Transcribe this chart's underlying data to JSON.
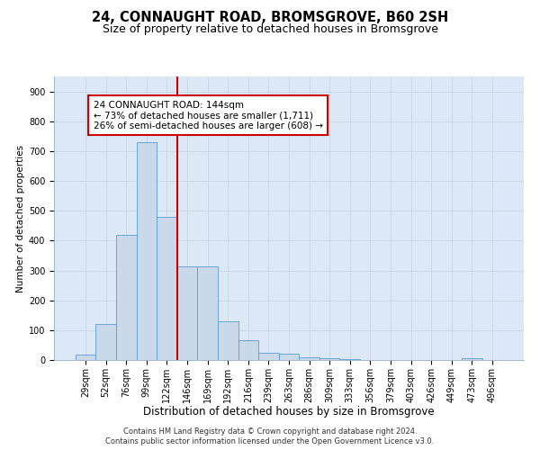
{
  "title1": "24, CONNAUGHT ROAD, BROMSGROVE, B60 2SH",
  "title2": "Size of property relative to detached houses in Bromsgrove",
  "xlabel": "Distribution of detached houses by size in Bromsgrove",
  "ylabel": "Number of detached properties",
  "bar_values": [
    18,
    120,
    418,
    730,
    480,
    315,
    315,
    130,
    65,
    25,
    20,
    10,
    5,
    2,
    0,
    0,
    0,
    0,
    0,
    5,
    0
  ],
  "bar_labels": [
    "29sqm",
    "52sqm",
    "76sqm",
    "99sqm",
    "122sqm",
    "146sqm",
    "169sqm",
    "192sqm",
    "216sqm",
    "239sqm",
    "263sqm",
    "286sqm",
    "309sqm",
    "333sqm",
    "356sqm",
    "379sqm",
    "403sqm",
    "426sqm",
    "449sqm",
    "473sqm",
    "496sqm"
  ],
  "bar_color": "#c9d9ea",
  "bar_edgecolor": "#5b9bd5",
  "vline_x": 4.5,
  "vline_color": "#cc0000",
  "annotation_text": "24 CONNAUGHT ROAD: 144sqm\n← 73% of detached houses are smaller (1,711)\n26% of semi-detached houses are larger (608) →",
  "annotation_box_edgecolor": "#cc0000",
  "annotation_box_facecolor": "#ffffff",
  "ylim": [
    0,
    950
  ],
  "yticks": [
    0,
    100,
    200,
    300,
    400,
    500,
    600,
    700,
    800,
    900
  ],
  "grid_color": "#c8d4e0",
  "background_color": "#dce8f5",
  "footer1": "Contains HM Land Registry data © Crown copyright and database right 2024.",
  "footer2": "Contains public sector information licensed under the Open Government Licence v3.0.",
  "title1_fontsize": 10.5,
  "title2_fontsize": 9,
  "xlabel_fontsize": 8.5,
  "ylabel_fontsize": 7.5,
  "tick_fontsize": 7,
  "annotation_fontsize": 7.5,
  "footer_fontsize": 6
}
